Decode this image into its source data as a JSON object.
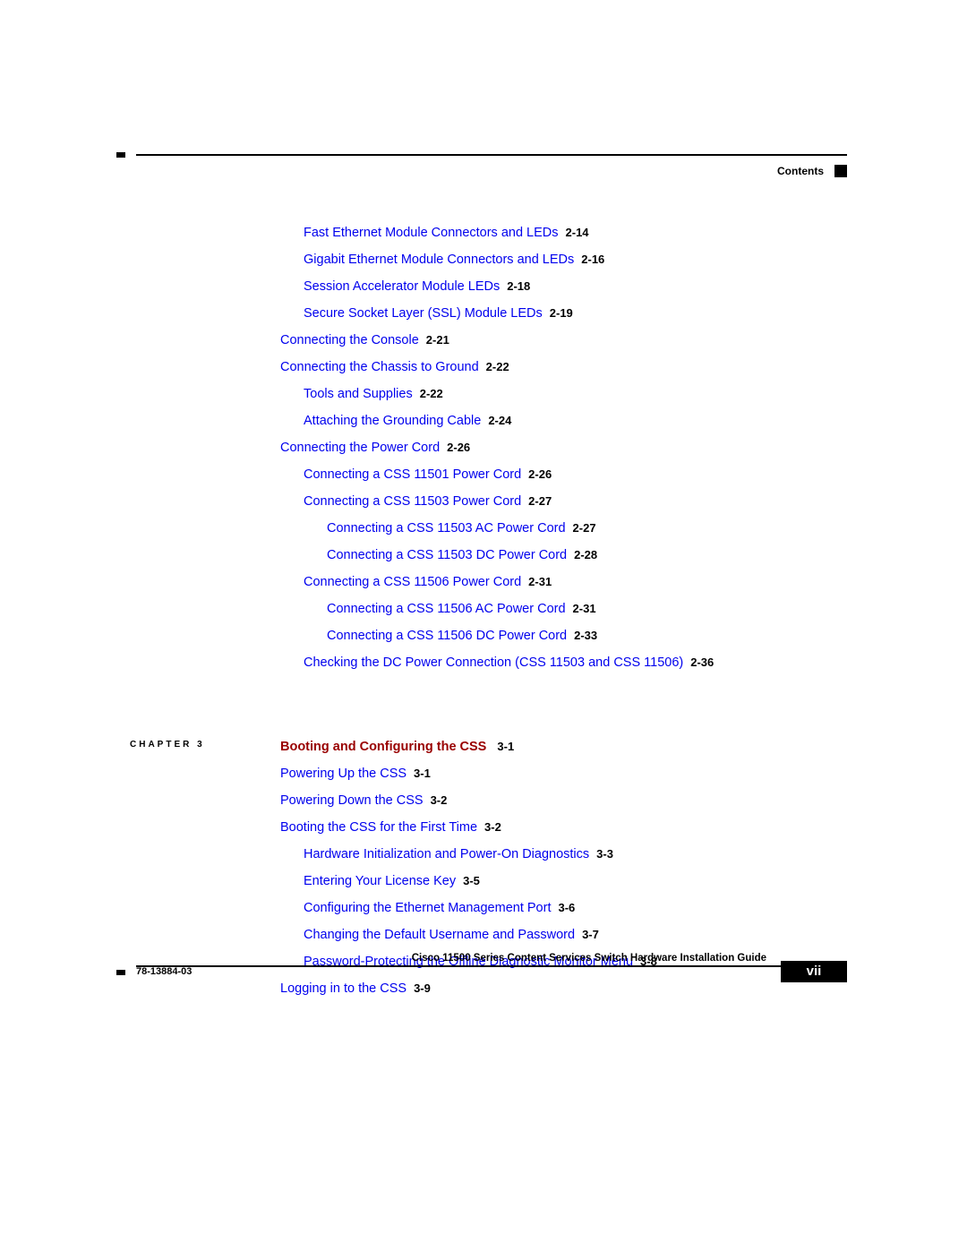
{
  "header": {
    "label": "Contents"
  },
  "toc_upper": [
    {
      "indent": 1,
      "title": "Fast Ethernet Module Connectors and LEDs",
      "page": "2-14"
    },
    {
      "indent": 1,
      "title": "Gigabit Ethernet Module Connectors and LEDs",
      "page": "2-16"
    },
    {
      "indent": 1,
      "title": "Session Accelerator Module LEDs",
      "page": "2-18"
    },
    {
      "indent": 1,
      "title": "Secure Socket Layer (SSL) Module LEDs",
      "page": "2-19"
    },
    {
      "indent": 0,
      "title": "Connecting the Console",
      "page": "2-21",
      "gap": true
    },
    {
      "indent": 0,
      "title": "Connecting the Chassis to Ground",
      "page": "2-22",
      "gap": true
    },
    {
      "indent": 1,
      "title": "Tools and Supplies",
      "page": "2-22"
    },
    {
      "indent": 1,
      "title": "Attaching the Grounding Cable",
      "page": "2-24"
    },
    {
      "indent": 0,
      "title": "Connecting the Power Cord",
      "page": "2-26",
      "gap": true
    },
    {
      "indent": 1,
      "title": "Connecting a CSS 11501 Power Cord",
      "page": "2-26"
    },
    {
      "indent": 1,
      "title": "Connecting a CSS 11503 Power Cord",
      "page": "2-27"
    },
    {
      "indent": 2,
      "title": "Connecting a CSS 11503 AC Power Cord",
      "page": "2-27"
    },
    {
      "indent": 2,
      "title": "Connecting a CSS 11503 DC Power Cord",
      "page": "2-28"
    },
    {
      "indent": 1,
      "title": "Connecting a CSS 11506 Power Cord",
      "page": "2-31"
    },
    {
      "indent": 2,
      "title": "Connecting a CSS 11506 AC Power Cord",
      "page": "2-31"
    },
    {
      "indent": 2,
      "title": "Connecting a CSS 11506 DC Power Cord",
      "page": "2-33"
    },
    {
      "indent": 1,
      "title": "Checking the DC Power Connection (CSS 11503 and CSS 11506)",
      "page": "2-36"
    }
  ],
  "chapter": {
    "label": "CHAPTER 3",
    "title": "Booting and Configuring the CSS",
    "page": "3-1"
  },
  "toc_chapter": [
    {
      "indent": 0,
      "title": "Powering Up the CSS",
      "page": "3-1"
    },
    {
      "indent": 0,
      "title": "Powering Down the CSS",
      "page": "3-2"
    },
    {
      "indent": 0,
      "title": "Booting the CSS for the First Time",
      "page": "3-2",
      "gap": true
    },
    {
      "indent": 1,
      "title": "Hardware Initialization and Power-On Diagnostics",
      "page": "3-3"
    },
    {
      "indent": 1,
      "title": "Entering Your License Key",
      "page": "3-5"
    },
    {
      "indent": 1,
      "title": "Configuring the Ethernet Management Port",
      "page": "3-6"
    },
    {
      "indent": 1,
      "title": "Changing the Default Username and Password",
      "page": "3-7"
    },
    {
      "indent": 1,
      "title": "Password-Protecting the Offline Diagnostic Monitor Menu",
      "page": "3-8"
    },
    {
      "indent": 0,
      "title": "Logging in to the CSS",
      "page": "3-9",
      "gap": true
    }
  ],
  "footer": {
    "guide_title": "Cisco 11500 Series Content Services Switch Hardware Installation Guide",
    "doc_number": "78-13884-03",
    "page_number": "vii"
  }
}
